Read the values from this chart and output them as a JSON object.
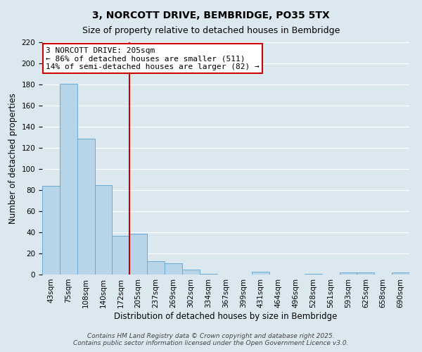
{
  "title": "3, NORCOTT DRIVE, BEMBRIDGE, PO35 5TX",
  "subtitle": "Size of property relative to detached houses in Bembridge",
  "xlabel": "Distribution of detached houses by size in Bembridge",
  "ylabel": "Number of detached properties",
  "bar_labels": [
    "43sqm",
    "75sqm",
    "108sqm",
    "140sqm",
    "172sqm",
    "205sqm",
    "237sqm",
    "269sqm",
    "302sqm",
    "334sqm",
    "367sqm",
    "399sqm",
    "431sqm",
    "464sqm",
    "496sqm",
    "528sqm",
    "561sqm",
    "593sqm",
    "625sqm",
    "658sqm",
    "690sqm"
  ],
  "bar_values": [
    84,
    181,
    129,
    85,
    37,
    39,
    13,
    11,
    5,
    1,
    0,
    0,
    3,
    0,
    0,
    1,
    0,
    2,
    2,
    0,
    2
  ],
  "bar_color": "#b8d4e8",
  "bar_edgecolor": "#6aaad4",
  "vline_x": 4.5,
  "vline_color": "#cc0000",
  "annotation_title": "3 NORCOTT DRIVE: 205sqm",
  "annotation_line1": "← 86% of detached houses are smaller (511)",
  "annotation_line2": "14% of semi-detached houses are larger (82) →",
  "annotation_box_facecolor": "#ffffff",
  "annotation_box_edgecolor": "#cc0000",
  "ylim": [
    0,
    220
  ],
  "yticks": [
    0,
    20,
    40,
    60,
    80,
    100,
    120,
    140,
    160,
    180,
    200,
    220
  ],
  "bg_color": "#dce8f0",
  "grid_color": "#ffffff",
  "footer1": "Contains HM Land Registry data © Crown copyright and database right 2025.",
  "footer2": "Contains public sector information licensed under the Open Government Licence v3.0.",
  "title_fontsize": 10,
  "subtitle_fontsize": 9,
  "axis_label_fontsize": 8.5,
  "tick_fontsize": 7.5,
  "annotation_fontsize": 8,
  "footer_fontsize": 6.5
}
